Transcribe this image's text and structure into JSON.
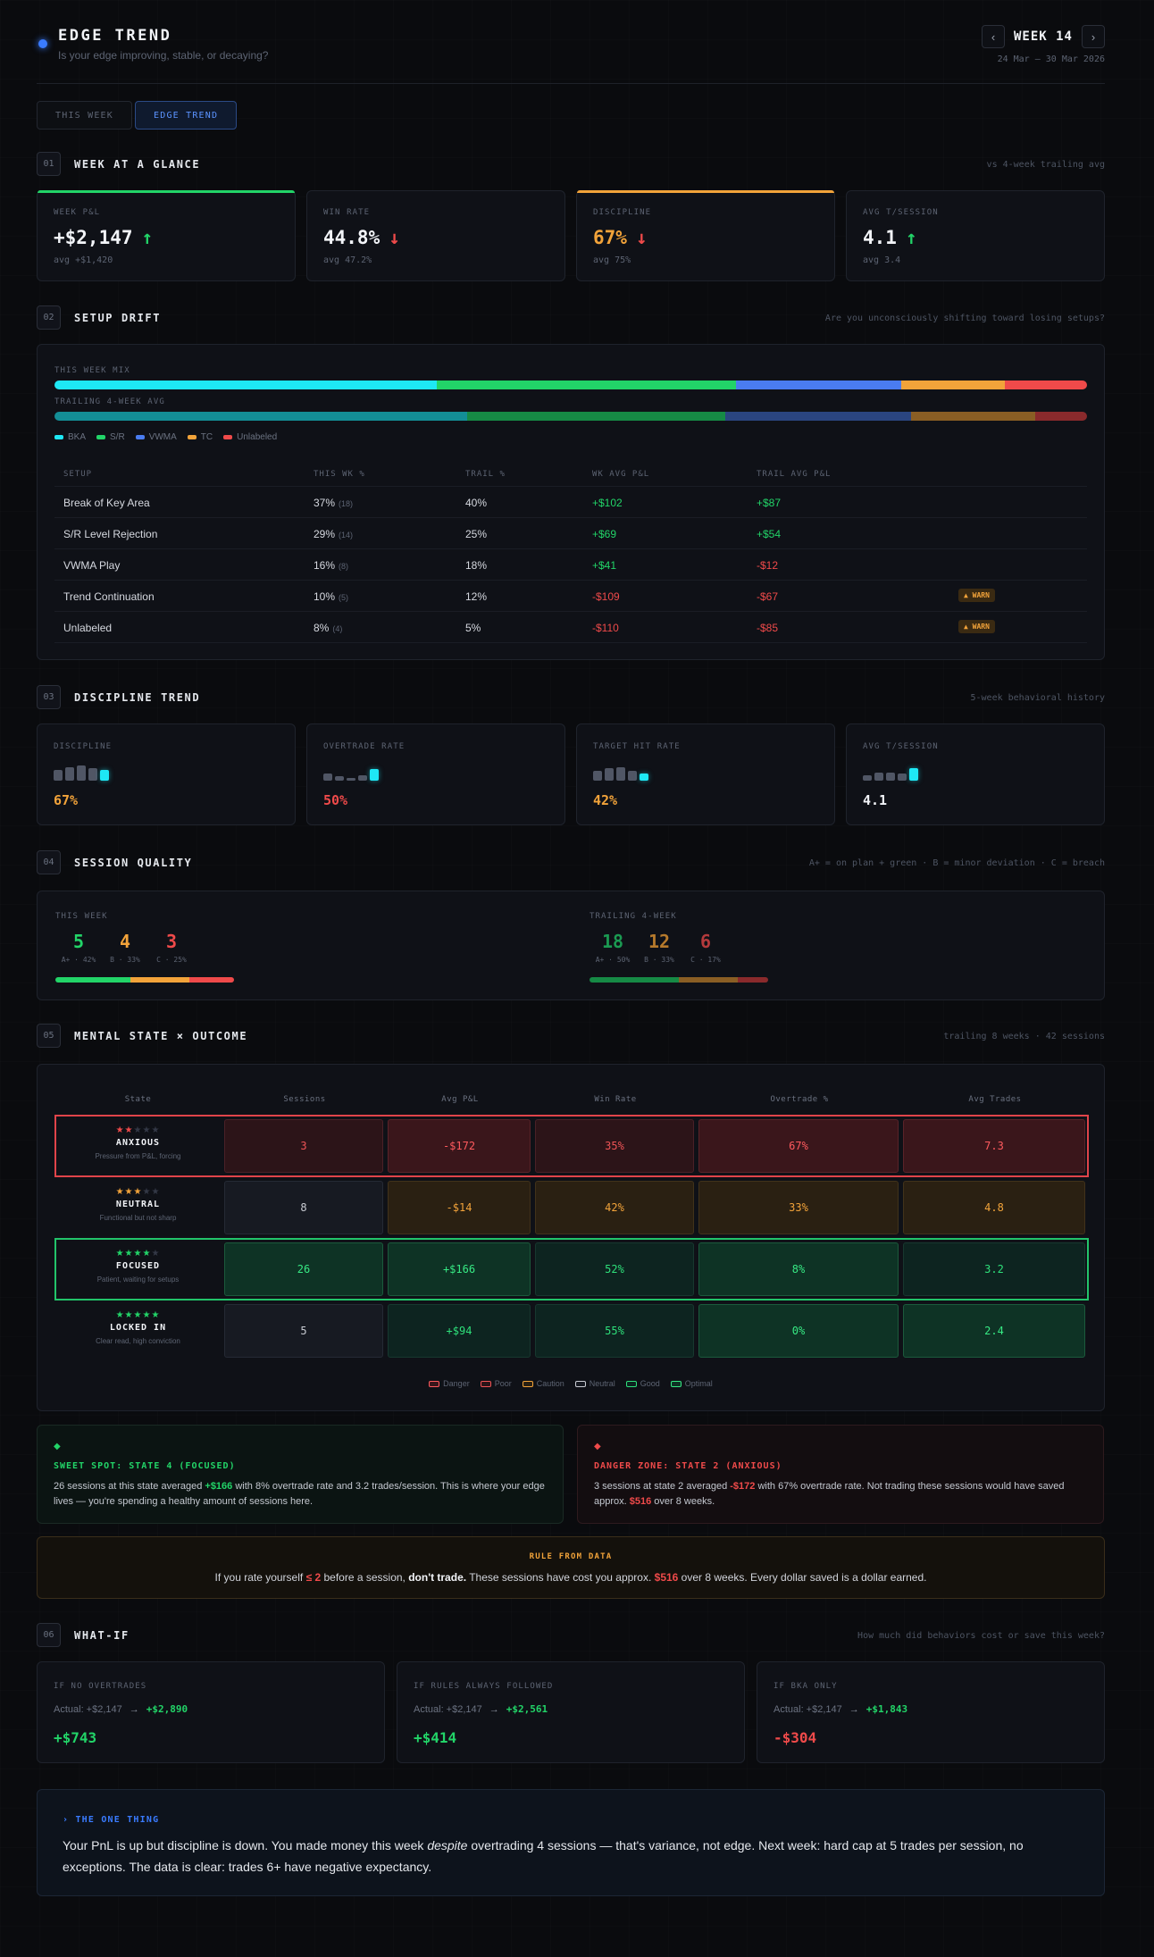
{
  "header": {
    "title": "EDGE TREND",
    "subtitle": "Is your edge improving, stable, or decaying?",
    "week_label": "WEEK 14",
    "date_range": "24 Mar – 30 Mar 2026",
    "prev_icon": "chevron-left-icon",
    "next_icon": "chevron-right-icon"
  },
  "tabs": [
    {
      "label": "THIS WEEK",
      "active": false
    },
    {
      "label": "EDGE TREND",
      "active": true
    }
  ],
  "sections": {
    "glance": {
      "num": "01",
      "title": "WEEK AT A GLANCE",
      "note": "vs 4-week trailing avg"
    },
    "drift": {
      "num": "02",
      "title": "SETUP DRIFT",
      "note": "Are you unconsciously shifting toward losing setups?"
    },
    "discipline": {
      "num": "03",
      "title": "DISCIPLINE TREND",
      "note": "5-week behavioral history"
    },
    "quality": {
      "num": "04",
      "title": "SESSION QUALITY",
      "note": "A+ = on plan + green · B = minor deviation · C = breach"
    },
    "mental": {
      "num": "05",
      "title": "MENTAL STATE × OUTCOME",
      "note": "trailing 8 weeks · 42 sessions"
    },
    "whatif": {
      "num": "06",
      "title": "WHAT-IF",
      "note": "How much did behaviors cost or save this week?"
    }
  },
  "glance_cards": [
    {
      "label": "WEEK P&L",
      "value": "+$2,147",
      "arrow": "↑",
      "dir": "up",
      "avg": "avg +$1,420",
      "accent": "#22d468",
      "value_color": "#f2f4f8"
    },
    {
      "label": "WIN RATE",
      "value": "44.8%",
      "arrow": "↓",
      "dir": "down",
      "avg": "avg 47.2%",
      "accent": "",
      "value_color": "#f2f4f8"
    },
    {
      "label": "DISCIPLINE",
      "value": "67%",
      "arrow": "↓",
      "dir": "down",
      "avg": "avg 75%",
      "accent": "#f2a33a",
      "value_color": "#f2a33a"
    },
    {
      "label": "AVG T/SESSION",
      "value": "4.1",
      "arrow": "↑",
      "dir": "up",
      "avg": "avg 3.4",
      "accent": "",
      "value_color": "#f2f4f8"
    }
  ],
  "drift": {
    "this_week_label": "THIS WEEK MIX",
    "trailing_label": "TRAILING 4-WEEK AVG",
    "colors": [
      "#1ee8f5",
      "#22d468",
      "#4a7cf0",
      "#f2a33a",
      "#ef4a4a"
    ],
    "trail_colors": [
      "#138e96",
      "#168a45",
      "#2a4580",
      "#8a5e24",
      "#8a2a2c"
    ],
    "this_week_mix": [
      37,
      29,
      16,
      10,
      8
    ],
    "trailing_mix": [
      40,
      25,
      18,
      12,
      5
    ],
    "legend": [
      "BKA",
      "S/R",
      "VWMA",
      "TC",
      "Unlabeled"
    ],
    "columns": [
      "SETUP",
      "THIS WK %",
      "TRAIL %",
      "WK AVG P&L",
      "TRAIL AVG P&L"
    ],
    "rows": [
      {
        "setup": "Break of Key Area",
        "this_wk": "37%",
        "count": "(18)",
        "trail": "40%",
        "wk_pnl": "+$102",
        "trail_pnl": "+$87",
        "warn": ""
      },
      {
        "setup": "S/R Level Rejection",
        "this_wk": "29%",
        "count": "(14)",
        "trail": "25%",
        "wk_pnl": "+$69",
        "trail_pnl": "+$54",
        "warn": ""
      },
      {
        "setup": "VWMA Play",
        "this_wk": "16%",
        "count": "(8)",
        "trail": "18%",
        "wk_pnl": "+$41",
        "trail_pnl": "-$12",
        "warn": ""
      },
      {
        "setup": "Trend Continuation",
        "this_wk": "10%",
        "count": "(5)",
        "trail": "12%",
        "wk_pnl": "-$109",
        "trail_pnl": "-$67",
        "warn": "▲ WARN"
      },
      {
        "setup": "Unlabeled",
        "this_wk": "8%",
        "count": "(4)",
        "trail": "5%",
        "wk_pnl": "-$110",
        "trail_pnl": "-$85",
        "warn": "▲ WARN"
      }
    ]
  },
  "discipline_cards": [
    {
      "label": "DISCIPLINE",
      "value": "67%",
      "color": "#f2a33a",
      "bars": [
        0.6,
        0.75,
        0.85,
        0.7,
        0.6
      ]
    },
    {
      "label": "OVERTRADE RATE",
      "value": "50%",
      "color": "#ef4a4a",
      "bars": [
        0.4,
        0.25,
        0.15,
        0.3,
        0.65
      ]
    },
    {
      "label": "TARGET HIT RATE",
      "value": "42%",
      "color": "#f2a33a",
      "bars": [
        0.55,
        0.7,
        0.75,
        0.55,
        0.4
      ]
    },
    {
      "label": "AVG T/SESSION",
      "value": "4.1",
      "color": "#f2f4f8",
      "bars": [
        0.3,
        0.45,
        0.45,
        0.4,
        0.7
      ]
    }
  ],
  "quality": {
    "this_week": {
      "label": "THIS WEEK",
      "items": [
        {
          "n": "5",
          "sub": "A+ · 42%",
          "color": "#22d468"
        },
        {
          "n": "4",
          "sub": "B · 33%",
          "color": "#f2a33a"
        },
        {
          "n": "3",
          "sub": "C · 25%",
          "color": "#ef4a4a"
        }
      ],
      "bar": [
        42,
        33,
        25
      ],
      "bar_colors": [
        "#22d468",
        "#f2a33a",
        "#ef4a4a"
      ]
    },
    "trailing": {
      "label": "TRAILING 4-WEEK",
      "items": [
        {
          "n": "18",
          "sub": "A+ · 50%",
          "color": "#1b9a52"
        },
        {
          "n": "12",
          "sub": "B · 33%",
          "color": "#b67a2c"
        },
        {
          "n": "6",
          "sub": "C · 17%",
          "color": "#b43a3c"
        }
      ],
      "bar": [
        50,
        33,
        17
      ],
      "bar_colors": [
        "#168a45",
        "#8a5e24",
        "#8a2a2c"
      ]
    }
  },
  "mental": {
    "columns": [
      "State",
      "Sessions",
      "Avg P&L",
      "Win Rate",
      "Overtrade %",
      "Avg Trades"
    ],
    "rows": [
      {
        "stars": 2,
        "name": "ANXIOUS",
        "desc": "Pressure from P&L, forcing",
        "star_color": "#ef4a4a",
        "highlight": "red",
        "cells": [
          {
            "v": "3",
            "c": "poor"
          },
          {
            "v": "-$172",
            "c": "danger"
          },
          {
            "v": "35%",
            "c": "poor"
          },
          {
            "v": "67%",
            "c": "danger"
          },
          {
            "v": "7.3",
            "c": "danger"
          }
        ]
      },
      {
        "stars": 3,
        "name": "NEUTRAL",
        "desc": "Functional but not sharp",
        "star_color": "#f2a33a",
        "highlight": "",
        "cells": [
          {
            "v": "8",
            "c": "neutral"
          },
          {
            "v": "-$14",
            "c": "caution"
          },
          {
            "v": "42%",
            "c": "caution"
          },
          {
            "v": "33%",
            "c": "caution"
          },
          {
            "v": "4.8",
            "c": "caution"
          }
        ]
      },
      {
        "stars": 4,
        "name": "FOCUSED",
        "desc": "Patient, waiting for setups",
        "star_color": "#22d468",
        "highlight": "green",
        "cells": [
          {
            "v": "26",
            "c": "optimal"
          },
          {
            "v": "+$166",
            "c": "optimal"
          },
          {
            "v": "52%",
            "c": "good"
          },
          {
            "v": "8%",
            "c": "optimal"
          },
          {
            "v": "3.2",
            "c": "good"
          }
        ]
      },
      {
        "stars": 5,
        "name": "LOCKED IN",
        "desc": "Clear read, high conviction",
        "star_color": "#22d468",
        "highlight": "",
        "cells": [
          {
            "v": "5",
            "c": "neutral"
          },
          {
            "v": "+$94",
            "c": "good"
          },
          {
            "v": "55%",
            "c": "good"
          },
          {
            "v": "0%",
            "c": "optimal"
          },
          {
            "v": "2.4",
            "c": "optimal"
          }
        ]
      }
    ],
    "legend": [
      {
        "label": "Danger",
        "c": "danger"
      },
      {
        "label": "Poor",
        "c": "poor"
      },
      {
        "label": "Caution",
        "c": "caution"
      },
      {
        "label": "Neutral",
        "c": "neutral"
      },
      {
        "label": "Good",
        "c": "good"
      },
      {
        "label": "Optimal",
        "c": "optimal"
      }
    ]
  },
  "insights": {
    "sweet": {
      "icon": "◆",
      "title": "SWEET SPOT: STATE 4 (FOCUSED)",
      "pre": "26 sessions at this state averaged ",
      "hl": "+$166",
      "post": " with 8% overtrade rate and 3.2 trades/session. This is where your edge lives — you're spending a healthy amount of sessions here."
    },
    "danger": {
      "icon": "◆",
      "title": "DANGER ZONE: STATE 2 (ANXIOUS)",
      "pre": "3 sessions at state 2 averaged ",
      "hl": "-$172",
      "mid": " with 67% overtrade rate. Not trading these sessions would have saved approx. ",
      "hl2": "$516",
      "post": " over 8 weeks."
    }
  },
  "rule": {
    "title": "RULE FROM DATA",
    "pre": "If you rate yourself ",
    "hl": "≤ 2",
    "mid": " before a session, ",
    "bold": "don't trade.",
    "mid2": " These sessions have cost you approx. ",
    "hl2": "$516",
    "post": " over 8 weeks. Every dollar saved is a dollar earned."
  },
  "whatif_cards": [
    {
      "label": "IF NO OVERTRADES",
      "actual": "Actual: +$2,147",
      "arrow": "→",
      "to": "+$2,890",
      "delta": "+$743",
      "color": "#22d468"
    },
    {
      "label": "IF RULES ALWAYS FOLLOWED",
      "actual": "Actual: +$2,147",
      "arrow": "→",
      "to": "+$2,561",
      "delta": "+$414",
      "color": "#22d468"
    },
    {
      "label": "IF BKA ONLY",
      "actual": "Actual: +$2,147",
      "arrow": "→",
      "to": "+$1,843",
      "delta": "-$304",
      "color": "#ef4a4a"
    }
  ],
  "one_thing": {
    "title": "› THE ONE THING",
    "pre": "Your PnL is up but discipline is down. You made money this week ",
    "em": "despite",
    "post": " overtrading 4 sessions — that's variance, not edge. Next week: hard cap at 5 trades per session, no exceptions. The data is clear: trades 6+ have negative expectancy."
  }
}
